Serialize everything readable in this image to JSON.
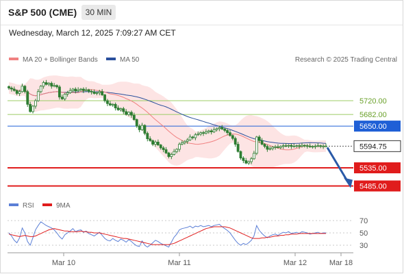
{
  "header": {
    "instrument": "S&P 500 (CME)",
    "timeframe": "30 MIN"
  },
  "datetime": "Wednesday, March 12, 2025 7:09:27 AM CET",
  "legend": {
    "ma20_label": "MA 20 + Bollinger Bands",
    "ma50_label": "MA 50",
    "rsi_label": "RSI",
    "rsi_ma_label": "9MA",
    "credit": "Research © 2025 Trading Central"
  },
  "colors": {
    "ma20": "#f08080",
    "ma50": "#2a4f9c",
    "bb_fill": "#fde4e4",
    "candle": "#2e7d32",
    "green_level": "#9ccc65",
    "blue_level": "#1f5fd6",
    "red_level": "#e01c1c",
    "arrow": "#2a5aa8",
    "rsi": "#5b7fd6",
    "rsi_ma": "#e01c1c"
  },
  "chart_data": {
    "type": "candlestick",
    "price_axis": {
      "min": 5460,
      "max": 5800
    },
    "x_labels": [
      "Mar 10",
      "Mar 11",
      "Mar 12",
      "Mar 18"
    ],
    "levels": [
      {
        "value": 5720.0,
        "label": "5720.00",
        "kind": "resistance-minor",
        "style": "line"
      },
      {
        "value": 5682.0,
        "label": "5682.00",
        "kind": "resistance-minor",
        "style": "line"
      },
      {
        "value": 5650.0,
        "label": "5650.00",
        "kind": "pivot",
        "style": "tag"
      },
      {
        "value": 5594.75,
        "label": "5594.75",
        "kind": "last-price",
        "style": "tag"
      },
      {
        "value": 5535.0,
        "label": "5535.00",
        "kind": "support",
        "style": "tag"
      },
      {
        "value": 5485.0,
        "label": "5485.00",
        "kind": "support",
        "style": "tag"
      }
    ],
    "closes": [
      5755,
      5752,
      5748,
      5740,
      5745,
      5760,
      5745,
      5710,
      5690,
      5705,
      5720,
      5745,
      5760,
      5770,
      5765,
      5768,
      5760,
      5762,
      5758,
      5730,
      5725,
      5738,
      5742,
      5748,
      5752,
      5747,
      5750,
      5752,
      5748,
      5750,
      5746,
      5744,
      5740,
      5742,
      5745,
      5736,
      5720,
      5712,
      5708,
      5710,
      5700,
      5695,
      5698,
      5690,
      5682,
      5688,
      5680,
      5668,
      5650,
      5640,
      5652,
      5630,
      5615,
      5610,
      5600,
      5606,
      5598,
      5590,
      5585,
      5576,
      5566,
      5572,
      5580,
      5586,
      5600,
      5604,
      5608,
      5612,
      5620,
      5618,
      5626,
      5628,
      5632,
      5630,
      5634,
      5637,
      5634,
      5640,
      5643,
      5646,
      5642,
      5638,
      5632,
      5624,
      5616,
      5600,
      5580,
      5562,
      5555,
      5548,
      5552,
      5560,
      5575,
      5620,
      5610,
      5600,
      5594,
      5586,
      5588,
      5592,
      5593,
      5591,
      5594,
      5596,
      5595,
      5597,
      5594,
      5595,
      5596,
      5594,
      5597,
      5596,
      5595,
      5593,
      5594,
      5595,
      5596,
      5594,
      5595,
      5595
    ],
    "forecast_arrow": {
      "from": 5594.75,
      "to": 5485.0
    },
    "rsi": {
      "axis_ticks": [
        70,
        50,
        30
      ],
      "values": [
        50,
        45,
        38,
        34,
        42,
        58,
        50,
        36,
        30,
        42,
        55,
        62,
        68,
        65,
        62,
        60,
        58,
        55,
        50,
        44,
        40,
        47,
        50,
        53,
        57,
        52,
        54,
        55,
        51,
        53,
        49,
        47,
        45,
        48,
        51,
        46,
        41,
        38,
        37,
        41,
        38,
        36,
        40,
        38,
        35,
        39,
        36,
        32,
        29,
        28,
        37,
        30,
        27,
        30,
        34,
        38,
        36,
        33,
        31,
        29,
        27,
        35,
        43,
        48,
        55,
        57,
        58,
        59,
        61,
        58,
        61,
        60,
        62,
        60,
        61,
        62,
        60,
        62,
        63,
        64,
        60,
        57,
        54,
        50,
        44,
        38,
        33,
        30,
        33,
        31,
        34,
        38,
        45,
        62,
        54,
        49,
        45,
        42,
        45,
        47,
        48,
        46,
        49,
        51,
        50,
        52,
        49,
        50,
        51,
        49,
        52,
        51,
        50,
        48,
        49,
        50,
        51,
        49,
        50,
        50
      ],
      "ma": [
        48,
        47,
        46,
        45,
        44,
        45,
        46,
        45,
        44,
        44,
        45,
        47,
        49,
        51,
        53,
        55,
        56,
        57,
        56,
        55,
        54,
        53,
        53,
        52,
        52,
        52,
        52,
        53,
        52,
        52,
        51,
        51,
        50,
        50,
        50,
        49,
        48,
        47,
        46,
        45,
        44,
        43,
        42,
        41,
        41,
        40,
        39,
        38,
        37,
        36,
        35,
        34,
        33,
        32,
        31,
        31,
        31,
        31,
        31,
        31,
        31,
        32,
        33,
        35,
        37,
        39,
        41,
        43,
        45,
        47,
        49,
        51,
        53,
        55,
        57,
        58,
        59,
        60,
        60,
        60,
        60,
        60,
        59,
        58,
        56,
        54,
        52,
        50,
        48,
        46,
        44,
        42,
        41,
        41,
        41,
        42,
        42,
        43,
        43,
        44,
        45,
        45,
        46,
        46,
        47,
        47,
        48,
        48,
        48,
        49,
        49,
        49,
        49,
        49,
        49,
        49,
        49,
        49,
        49,
        49
      ]
    }
  }
}
